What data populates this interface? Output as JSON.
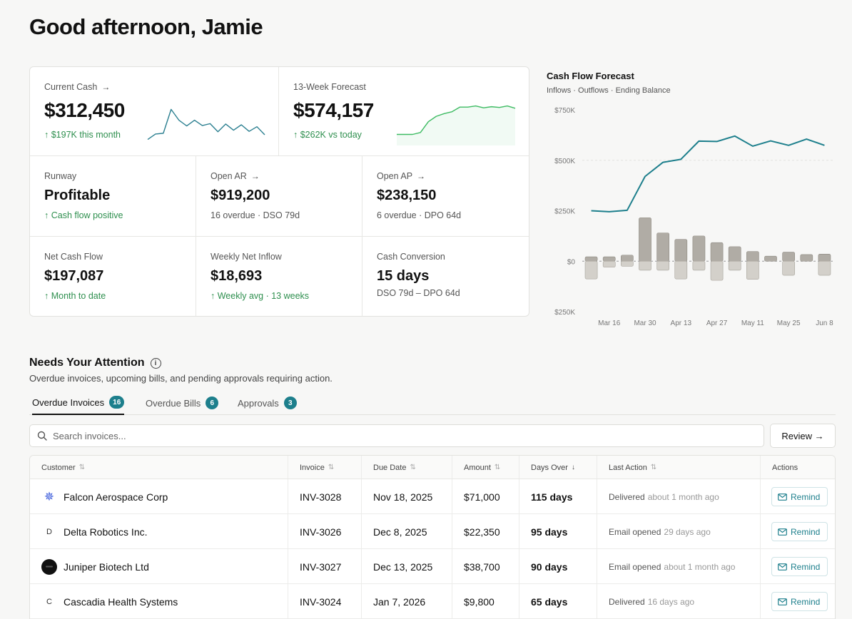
{
  "greeting": "Good afternoon, Jamie",
  "metrics": {
    "current_cash": {
      "label": "Current Cash",
      "value": "$312,450",
      "sub": "↑ $197K this month",
      "trend": [
        12,
        26,
        28,
        90,
        62,
        47,
        62,
        48,
        53,
        32,
        52,
        36,
        50,
        33,
        45,
        24
      ]
    },
    "forecast": {
      "label": "13-Week Forecast",
      "value": "$574,157",
      "sub": "↑ $262K vs today",
      "trend": [
        25,
        25,
        25,
        30,
        58,
        72,
        79,
        84,
        96,
        96,
        99,
        94,
        97,
        95,
        99,
        93
      ]
    },
    "runway": {
      "label": "Runway",
      "value": "Profitable",
      "sub": "↑ Cash flow positive"
    },
    "open_ar": {
      "label": "Open AR",
      "value": "$919,200",
      "sub": "16 overdue · DSO 79d"
    },
    "open_ap": {
      "label": "Open AP",
      "value": "$238,150",
      "sub": "6 overdue · DPO 64d"
    },
    "net_cash_flow": {
      "label": "Net Cash Flow",
      "value": "$197,087",
      "sub": "↑ Month to date"
    },
    "weekly_net_inflow": {
      "label": "Weekly Net Inflow",
      "value": "$18,693",
      "sub": "↑ Weekly avg · 13 weeks"
    },
    "cash_conversion": {
      "label": "Cash Conversion",
      "value": "15 days",
      "sub": "DSO 79d – DPO 64d"
    }
  },
  "chart_data": {
    "type": "bar",
    "title": "Cash Flow Forecast",
    "subtitle": "Inflows · Outflows · Ending Balance",
    "ylim": [
      -250000,
      750000
    ],
    "y_ticks": [
      750000,
      500000,
      250000,
      0,
      -250000
    ],
    "y_tick_labels": [
      "$750K",
      "$500K",
      "$250K",
      "$0",
      "$250K"
    ],
    "x_tick_labels": [
      "Mar 16",
      "Mar 30",
      "Apr 13",
      "Apr 27",
      "May 11",
      "May 25",
      "Jun 8"
    ],
    "x_tick_positions": [
      1,
      3,
      5,
      7,
      9,
      11,
      13
    ],
    "series": [
      {
        "name": "Inflows",
        "kind": "bar",
        "values": [
          22000,
          22000,
          30000,
          215000,
          140000,
          108000,
          125000,
          92000,
          72000,
          48000,
          25000,
          45000,
          33000,
          35000
        ]
      },
      {
        "name": "Outflows",
        "kind": "bar",
        "values": [
          -88000,
          -30000,
          -25000,
          -45000,
          -45000,
          -88000,
          -45000,
          -95000,
          -45000,
          -90000,
          0,
          -70000,
          0,
          -70000
        ]
      },
      {
        "name": "Ending Balance",
        "kind": "line",
        "values": [
          250000,
          245000,
          252000,
          420000,
          490000,
          505000,
          595000,
          593000,
          620000,
          570000,
          596000,
          574000,
          605000,
          574000
        ]
      }
    ]
  },
  "attention": {
    "title": "Needs Your Attention",
    "info_icon": "i",
    "description": "Overdue invoices, upcoming bills, and pending approvals requiring action.",
    "tabs": [
      {
        "label": "Overdue Invoices",
        "count": "16"
      },
      {
        "label": "Overdue Bills",
        "count": "6"
      },
      {
        "label": "Approvals",
        "count": "3"
      }
    ],
    "search_placeholder": "Search invoices...",
    "review_label": "Review →",
    "columns": [
      "Customer",
      "Invoice",
      "Due Date",
      "Amount",
      "Days Over",
      "Last Action",
      "Actions"
    ],
    "remind_label": "Remind",
    "rows": [
      {
        "customer": "Falcon Aerospace Corp",
        "logo": "✵",
        "invoice": "INV-3028",
        "due": "Nov 18, 2025",
        "amount": "$71,000",
        "days": "115 days",
        "action": "Delivered",
        "when": "about 1 month ago"
      },
      {
        "customer": "Delta Robotics Inc.",
        "logo": "D",
        "invoice": "INV-3026",
        "due": "Dec 8, 2025",
        "amount": "$22,350",
        "days": "95 days",
        "action": "Email opened",
        "when": "29 days ago"
      },
      {
        "customer": "Juniper Biotech Ltd",
        "logo": "",
        "invoice": "INV-3027",
        "due": "Dec 13, 2025",
        "amount": "$38,700",
        "days": "90 days",
        "action": "Email opened",
        "when": "about 1 month ago"
      },
      {
        "customer": "Cascadia Health Systems",
        "logo": "C",
        "invoice": "INV-3024",
        "due": "Jan 7, 2026",
        "amount": "$9,800",
        "days": "65 days",
        "action": "Delivered",
        "when": "16 days ago"
      }
    ]
  }
}
